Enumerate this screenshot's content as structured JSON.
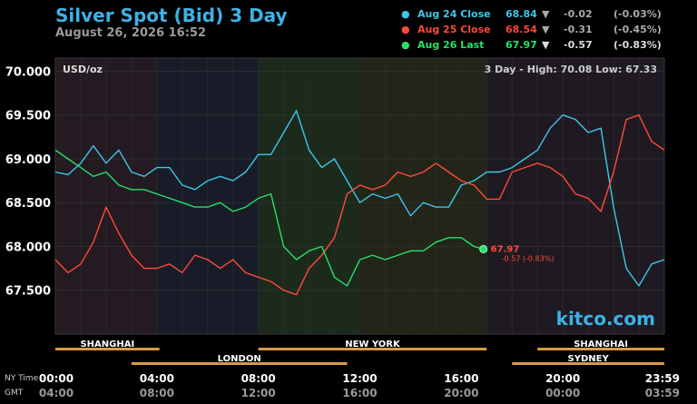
{
  "header": {
    "title": "Silver Spot (Bid) 3 Day",
    "datetime": "August 26, 2026 16:52"
  },
  "legend": [
    {
      "label": "Aug 24 Close",
      "value": "68.84",
      "arrow": "▼",
      "change": "-0.02",
      "percent": "(-0.03%)",
      "color": "#3fc6e8"
    },
    {
      "label": "Aug 25 Close",
      "value": "68.54",
      "arrow": "▼",
      "change": "-0.31",
      "percent": "(-0.45%)",
      "color": "#ff4a3a"
    },
    {
      "label": "Aug 26 Last",
      "value": "67.97",
      "arrow": "▼",
      "change": "-0.57",
      "percent": "(-0.83%)",
      "color": "#27e06a"
    }
  ],
  "unit_label": "USD/oz",
  "range_label": "3 Day - High: 70.08  Low: 67.33",
  "watermark": "kitco.com",
  "last_marker": {
    "value": "67.97",
    "change": "-0.57 (-0.83%)"
  },
  "row_labels": {
    "ny": "NY Time",
    "gmt": "GMT"
  },
  "markets_top": [
    {
      "name": "SHANGHAI",
      "start": 0,
      "end": 4.1
    },
    {
      "name": "NEW YORK",
      "start": 8,
      "end": 17
    },
    {
      "name": "SHANGHAI",
      "start": 19,
      "end": 24
    }
  ],
  "markets_bottom": [
    {
      "name": "LONDON",
      "start": 3,
      "end": 11.5
    },
    {
      "name": "SYDNEY",
      "start": 18,
      "end": 24
    }
  ],
  "colors": {
    "aug24": "#3fc6e8",
    "aug25": "#ff4a3a",
    "aug26": "#27e06a",
    "axis": "#ffffff",
    "session_bar": "#d89a4a"
  },
  "chart_data": {
    "type": "line",
    "title": "Silver Spot (Bid) 3 Day",
    "ylabel": "USD/oz",
    "ylim": [
      67.0,
      70.15
    ],
    "xlim": [
      0,
      24
    ],
    "y_ticks": [
      70.0,
      69.5,
      69.0,
      68.5,
      68.0,
      67.5
    ],
    "y_tick_labels": [
      "70.000",
      "69.500",
      "69.000",
      "68.500",
      "68.000",
      "67.500"
    ],
    "x_ticks": [
      0,
      4,
      8,
      12,
      16,
      20,
      24
    ],
    "x_tick_labels_ny": [
      "00:00",
      "04:00",
      "08:00",
      "12:00",
      "16:00",
      "20:00",
      "23:59"
    ],
    "x_tick_labels_gmt": [
      "04:00",
      "08:00",
      "12:00",
      "16:00",
      "20:00",
      "00:00",
      "03:59"
    ],
    "high": 70.08,
    "low": 67.33,
    "series": [
      {
        "name": "Aug 24 Close",
        "x": [
          0,
          0.5,
          1,
          1.5,
          2,
          2.5,
          3,
          3.5,
          4,
          4.5,
          5,
          5.5,
          6,
          6.5,
          7,
          7.5,
          8,
          8.5,
          9,
          9.5,
          10,
          10.5,
          11,
          11.5,
          12,
          12.5,
          13,
          13.5,
          14,
          14.5,
          15,
          15.5,
          16,
          16.5,
          17,
          17.5,
          18,
          18.5,
          19,
          19.5,
          20,
          20.5,
          21,
          21.5,
          22,
          22.5,
          23,
          23.5,
          24
        ],
        "values": [
          68.85,
          68.82,
          68.95,
          69.15,
          68.95,
          69.1,
          68.85,
          68.8,
          68.9,
          68.9,
          68.7,
          68.65,
          68.75,
          68.8,
          68.75,
          68.85,
          69.05,
          69.05,
          69.3,
          69.55,
          69.1,
          68.9,
          69.0,
          68.75,
          68.5,
          68.6,
          68.55,
          68.6,
          68.35,
          68.5,
          68.45,
          68.45,
          68.7,
          68.75,
          68.85,
          68.85,
          68.9,
          69.0,
          69.1,
          69.35,
          69.5,
          69.45,
          69.3,
          69.35,
          68.45,
          67.75,
          67.55,
          67.8,
          67.85
        ]
      },
      {
        "name": "Aug 25 Close",
        "x": [
          0,
          0.5,
          1,
          1.5,
          2,
          2.5,
          3,
          3.5,
          4,
          4.5,
          5,
          5.5,
          6,
          6.5,
          7,
          7.5,
          8,
          8.5,
          9,
          9.5,
          10,
          10.5,
          11,
          11.5,
          12,
          12.5,
          13,
          13.5,
          14,
          14.5,
          15,
          15.5,
          16,
          16.5,
          17,
          17.5,
          18,
          18.5,
          19,
          19.5,
          20,
          20.5,
          21,
          21.5,
          22,
          22.5,
          23,
          23.5,
          24
        ],
        "values": [
          67.85,
          67.7,
          67.8,
          68.05,
          68.45,
          68.15,
          67.9,
          67.75,
          67.75,
          67.8,
          67.7,
          67.9,
          67.85,
          67.75,
          67.85,
          67.7,
          67.65,
          67.6,
          67.5,
          67.45,
          67.75,
          67.9,
          68.1,
          68.6,
          68.7,
          68.65,
          68.7,
          68.85,
          68.8,
          68.85,
          68.95,
          68.85,
          68.75,
          68.7,
          68.54,
          68.54,
          68.85,
          68.9,
          68.95,
          68.9,
          68.8,
          68.6,
          68.55,
          68.4,
          68.85,
          69.45,
          69.5,
          69.2,
          69.1
        ]
      },
      {
        "name": "Aug 26 Last",
        "x": [
          0,
          0.5,
          1,
          1.5,
          2,
          2.5,
          3,
          3.5,
          4,
          4.5,
          5,
          5.5,
          6,
          6.5,
          7,
          7.5,
          8,
          8.5,
          9,
          9.5,
          10,
          10.5,
          11,
          11.5,
          12,
          12.5,
          13,
          13.5,
          14,
          14.5,
          15,
          15.5,
          16,
          16.5,
          16.87
        ],
        "values": [
          69.1,
          69.0,
          68.9,
          68.8,
          68.85,
          68.7,
          68.65,
          68.65,
          68.6,
          68.55,
          68.5,
          68.45,
          68.45,
          68.5,
          68.4,
          68.45,
          68.55,
          68.6,
          68.0,
          67.85,
          67.95,
          68.0,
          67.65,
          67.55,
          67.85,
          67.9,
          67.85,
          67.9,
          67.95,
          67.95,
          68.05,
          68.1,
          68.1,
          68.0,
          67.97
        ]
      }
    ]
  }
}
